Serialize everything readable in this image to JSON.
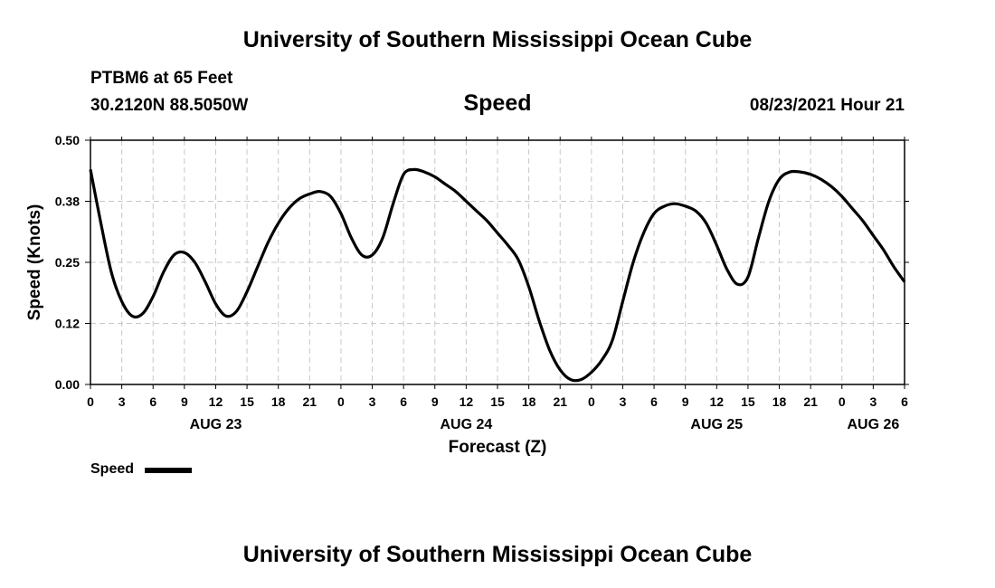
{
  "header": {
    "title": "University of Southern Mississippi Ocean Cube",
    "station": "PTBM6 at 65 Feet",
    "coordinates": "30.2120N  88.5050W",
    "variable": "Speed",
    "timestamp": "08/23/2021 Hour 21"
  },
  "footer": {
    "title": "University of Southern Mississippi Ocean Cube"
  },
  "legend": {
    "label": "Speed"
  },
  "chart_data": {
    "type": "line",
    "ylabel": "Speed (Knots)",
    "xlabel": "Forecast (Z)",
    "ylim": [
      0,
      0.5
    ],
    "xlim": [
      0,
      78
    ],
    "yticks": [
      0,
      0.125,
      0.25,
      0.375,
      0.5
    ],
    "ytick_labels": [
      "0.00",
      "0.12",
      "0.25",
      "0.38",
      "0.50"
    ],
    "xtick_labels": [
      "0",
      "3",
      "6",
      "9",
      "12",
      "15",
      "18",
      "21",
      "0",
      "3",
      "6",
      "9",
      "12",
      "15",
      "18",
      "21",
      "0",
      "3",
      "6",
      "9",
      "12",
      "15",
      "18",
      "21",
      "0",
      "3",
      "6"
    ],
    "date_labels": [
      {
        "label": "AUG 23",
        "hour": 12
      },
      {
        "label": "AUG 24",
        "hour": 36
      },
      {
        "label": "AUG 25",
        "hour": 60
      },
      {
        "label": "AUG 26",
        "hour": 75
      }
    ],
    "grid": true,
    "legend_position": "bottom-left",
    "series": [
      {
        "name": "Speed",
        "color": "#000000",
        "x": [
          0,
          1,
          2,
          3,
          4,
          5,
          6,
          7,
          8,
          9,
          10,
          11,
          12,
          13,
          14,
          15,
          16,
          17,
          18,
          19,
          20,
          21,
          22,
          23,
          24,
          25,
          26,
          27,
          28,
          29,
          30,
          31,
          32,
          33,
          34,
          35,
          36,
          37,
          38,
          39,
          40,
          41,
          42,
          43,
          44,
          45,
          46,
          47,
          48,
          49,
          50,
          51,
          52,
          53,
          54,
          55,
          56,
          57,
          58,
          59,
          60,
          61,
          62,
          63,
          64,
          65,
          66,
          67,
          68,
          69,
          70,
          71,
          72,
          73,
          74,
          75,
          76,
          77,
          78
        ],
        "values": [
          0.44,
          0.33,
          0.23,
          0.17,
          0.14,
          0.145,
          0.18,
          0.23,
          0.265,
          0.27,
          0.25,
          0.21,
          0.165,
          0.14,
          0.15,
          0.19,
          0.24,
          0.29,
          0.33,
          0.36,
          0.38,
          0.39,
          0.395,
          0.385,
          0.35,
          0.3,
          0.265,
          0.265,
          0.3,
          0.37,
          0.43,
          0.44,
          0.435,
          0.425,
          0.41,
          0.395,
          0.375,
          0.355,
          0.335,
          0.31,
          0.285,
          0.255,
          0.2,
          0.13,
          0.07,
          0.03,
          0.01,
          0.01,
          0.025,
          0.05,
          0.09,
          0.17,
          0.25,
          0.31,
          0.35,
          0.365,
          0.37,
          0.365,
          0.355,
          0.33,
          0.285,
          0.235,
          0.205,
          0.22,
          0.3,
          0.375,
          0.42,
          0.435,
          0.435,
          0.43,
          0.42,
          0.405,
          0.385,
          0.36,
          0.335,
          0.305,
          0.275,
          0.24,
          0.21
        ]
      }
    ]
  }
}
